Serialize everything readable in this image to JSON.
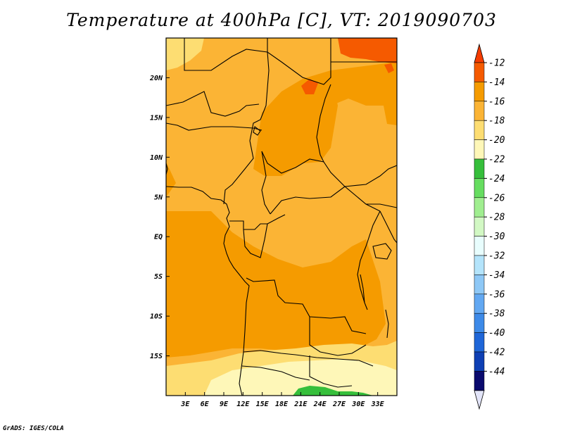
{
  "title": "Temperature at 400hPa [C], VT: 2019090703",
  "footer": "GrADS: IGES/COLA",
  "map": {
    "lon_range": [
      0,
      36
    ],
    "lat_range": [
      -20,
      25
    ],
    "x_ticks": [
      {
        "value": 3,
        "label": "3E"
      },
      {
        "value": 6,
        "label": "6E"
      },
      {
        "value": 9,
        "label": "9E"
      },
      {
        "value": 12,
        "label": "12E"
      },
      {
        "value": 15,
        "label": "15E"
      },
      {
        "value": 18,
        "label": "18E"
      },
      {
        "value": 21,
        "label": "21E"
      },
      {
        "value": 24,
        "label": "24E"
      },
      {
        "value": 27,
        "label": "27E"
      },
      {
        "value": 30,
        "label": "30E"
      },
      {
        "value": 33,
        "label": "33E"
      }
    ],
    "y_ticks": [
      {
        "value": 20,
        "label": "20N"
      },
      {
        "value": 15,
        "label": "15N"
      },
      {
        "value": 10,
        "label": "10N"
      },
      {
        "value": 5,
        "label": "5N"
      },
      {
        "value": 0,
        "label": "EQ"
      },
      {
        "value": -5,
        "label": "5S"
      },
      {
        "value": -10,
        "label": "10S"
      },
      {
        "value": -15,
        "label": "15S"
      }
    ]
  },
  "colorbar": {
    "levels": [
      "-12",
      "-14",
      "-16",
      "-18",
      "-20",
      "-22",
      "-24",
      "-26",
      "-28",
      "-30",
      "-32",
      "-34",
      "-36",
      "-38",
      "-40",
      "-42",
      "-44"
    ],
    "colors": [
      "#f55a00",
      "#f59b00",
      "#fbb435",
      "#fddd72",
      "#fef7b8",
      "#36bf3b",
      "#66dd60",
      "#a0ee90",
      "#d2f8c4",
      "#e8fdfd",
      "#b4e4fb",
      "#8ec8f6",
      "#62a8f2",
      "#3d8ae8",
      "#1f66d8",
      "#0e3fb4",
      "#0a0a6e"
    ],
    "top_triangle_color": "#f53c00",
    "bottom_triangle_color": "#e2e4f8"
  }
}
